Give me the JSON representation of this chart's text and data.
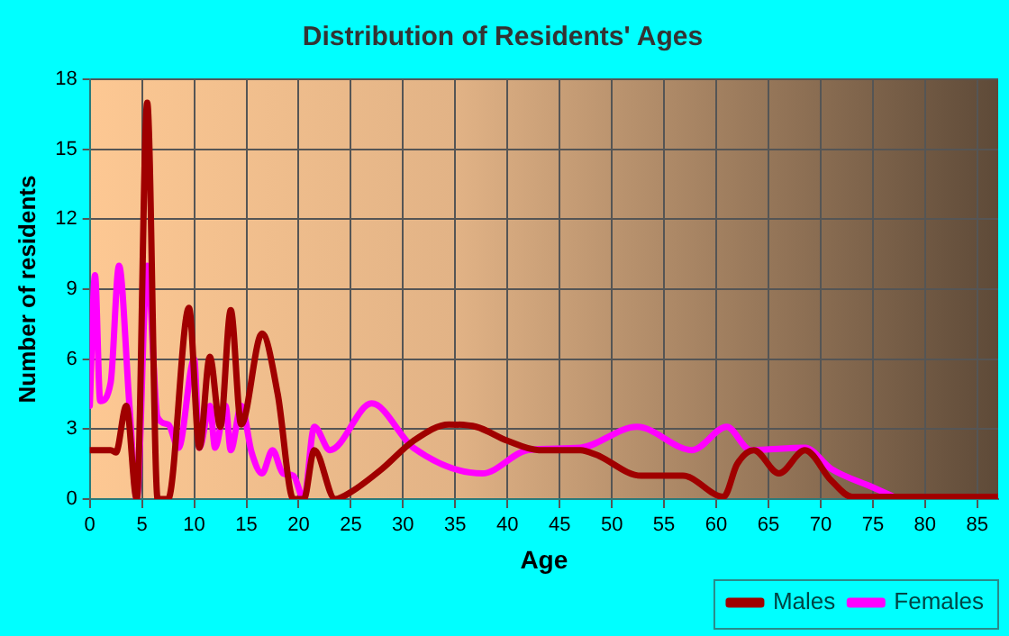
{
  "chart_data": {
    "type": "line",
    "title": "Distribution of Residents' Ages",
    "xlabel": "Age",
    "ylabel": "Number of residents",
    "xlim": [
      0,
      87
    ],
    "xticks": [
      0,
      5,
      10,
      15,
      20,
      25,
      30,
      35,
      40,
      45,
      50,
      55,
      60,
      65,
      70,
      75,
      80,
      85
    ],
    "ylim": [
      0,
      18
    ],
    "yticks": [
      0,
      3,
      6,
      9,
      12,
      15,
      18
    ],
    "grid": true,
    "legend": "bottom right",
    "marker": "none",
    "line_style": "solid",
    "series": [
      {
        "name": "Males",
        "color": "#a00000",
        "x": [
          0,
          2,
          2.5,
          3.5,
          4.5,
          5.5,
          6.5,
          7.5,
          9.5,
          10.5,
          11.5,
          12.5,
          13.5,
          14.5,
          16.5,
          18,
          19.5,
          20.5,
          21.5,
          23.5,
          25,
          28,
          31,
          34.4,
          37,
          40,
          43,
          47,
          48.5,
          52.8,
          56.8,
          60.7,
          62,
          63.6,
          66,
          68.5,
          71,
          73,
          75,
          87
        ],
        "values": [
          2.1,
          2.1,
          2,
          4,
          0,
          17,
          0,
          0,
          8.2,
          2.2,
          6.1,
          3.1,
          8.1,
          3.2,
          7.1,
          4.5,
          0,
          0,
          2.1,
          0,
          0.3,
          1.3,
          2.5,
          3.2,
          3.1,
          2.5,
          2.1,
          2.1,
          1.9,
          1.0,
          1.0,
          0.1,
          1.5,
          2.1,
          1.1,
          2.1,
          0.8,
          0.1,
          0.1,
          0.1
        ]
      },
      {
        "name": "Females",
        "color": "#ff00ff",
        "x": [
          0,
          0.5,
          1,
          2,
          2.8,
          3.8,
          4.5,
          5.5,
          6.5,
          7.5,
          8.5,
          10,
          10.5,
          11.5,
          12,
          13,
          13.5,
          14.5,
          15.5,
          16.5,
          17.5,
          18.5,
          19.5,
          20.5,
          21.5,
          23,
          27,
          31,
          37.6,
          42,
          47,
          52.4,
          57.7,
          61,
          63.3,
          68.5,
          71,
          75,
          77
        ],
        "values": [
          4,
          9.6,
          4.2,
          5,
          10,
          4,
          0,
          10,
          3.5,
          3.2,
          2.2,
          6,
          2.2,
          4,
          2.2,
          4,
          2.1,
          4,
          2,
          1.1,
          2.1,
          1.1,
          1.0,
          0,
          3.1,
          2.1,
          4.1,
          2.2,
          1.1,
          2.1,
          2.2,
          3.1,
          2.1,
          3.1,
          2.1,
          2.2,
          1.3,
          0.5,
          0.1
        ]
      }
    ]
  }
}
